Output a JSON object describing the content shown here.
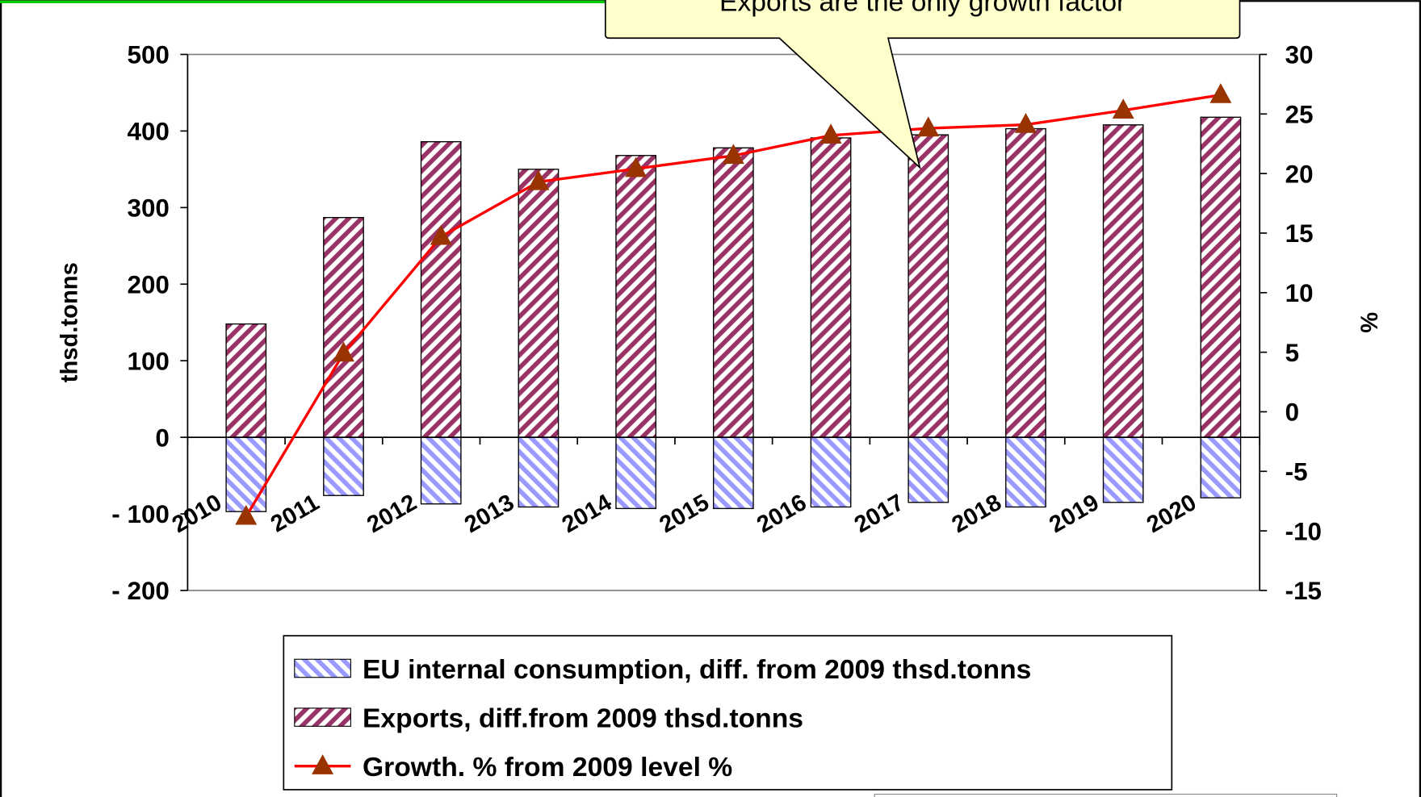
{
  "chart_data": {
    "type": "bar",
    "annotation": "Exports are the only growth factor",
    "ylabel": "thsd.tonns",
    "y2label": "%",
    "categories": [
      "2010",
      "2011",
      "2012",
      "2013",
      "2014",
      "2015",
      "2016",
      "2017",
      "2018",
      "2019",
      "2020"
    ],
    "ylim": [
      -200,
      500
    ],
    "yticks": [
      {
        "value": -200,
        "label": "- 200"
      },
      {
        "value": -100,
        "label": "- 100"
      },
      0,
      100,
      200,
      300,
      400,
      500
    ],
    "y2lim": [
      -15,
      30
    ],
    "y2ticks": [
      -15,
      -10,
      -5,
      0,
      5,
      10,
      15,
      20,
      25,
      30
    ],
    "series": [
      {
        "name": "EU internal consumption, diff. from 2009 thsd.tonns",
        "type": "bar",
        "color": "#9999ff",
        "values": [
          -97,
          -76,
          -87,
          -91,
          -93,
          -93,
          -91,
          -85,
          -91,
          -85,
          -79
        ]
      },
      {
        "name": "Exports, diff.from 2009 thsd.tonns",
        "type": "bar",
        "color": "#993366",
        "values": [
          148,
          287,
          386,
          350,
          368,
          378,
          391,
          395,
          403,
          408,
          418
        ]
      },
      {
        "name": "Growth. % from 2009 level %",
        "type": "line",
        "axis": "y2",
        "color": "#ff0000",
        "marker_color": "#993300",
        "values": [
          -8.8,
          4.9,
          14.7,
          19.3,
          20.4,
          21.5,
          23.2,
          23.8,
          24.1,
          25.3,
          26.6
        ]
      }
    ]
  }
}
